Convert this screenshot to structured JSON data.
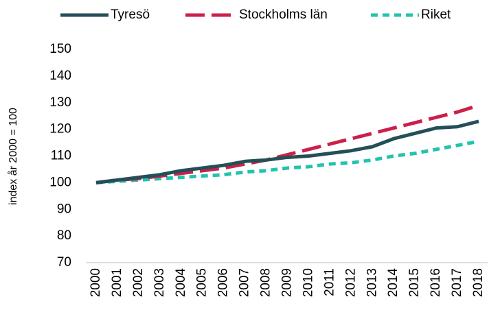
{
  "chart_data": {
    "type": "line",
    "y_label": "index år 2000 = 100",
    "categories": [
      "2000",
      "2001",
      "2002",
      "2003",
      "2004",
      "2005",
      "2006",
      "2007",
      "2008",
      "2009",
      "2010",
      "2011",
      "2012",
      "2013",
      "2014",
      "2015",
      "2016",
      "2017",
      "2018"
    ],
    "series": [
      {
        "name": "Tyresö",
        "color": "#234f58",
        "dash": "solid",
        "values": [
          100,
          101,
          102,
          103,
          104.5,
          105.5,
          106.5,
          108,
          108.5,
          109.5,
          110,
          111,
          112,
          113.5,
          116.5,
          118.5,
          120.5,
          121,
          123
        ]
      },
      {
        "name": "Stockholms län",
        "color": "#cc1f4a",
        "dash": "long",
        "values": [
          100,
          101,
          101.5,
          102.5,
          103.5,
          104.5,
          105.5,
          107,
          108.5,
          110.5,
          112.5,
          114.5,
          116.5,
          118.5,
          120.5,
          122.5,
          124.5,
          126.5,
          129
        ]
      },
      {
        "name": "Riket",
        "color": "#22c3ad",
        "dash": "short",
        "values": [
          100,
          100.5,
          101,
          101.5,
          102,
          102.5,
          103,
          104,
          104.5,
          105.5,
          106,
          107,
          107.5,
          108.5,
          110,
          111,
          112.5,
          114,
          115.5
        ]
      }
    ],
    "ylim": [
      70,
      150
    ],
    "yticks": [
      70,
      80,
      90,
      100,
      110,
      120,
      130,
      140,
      150
    ],
    "grid": false,
    "legend": "top"
  }
}
